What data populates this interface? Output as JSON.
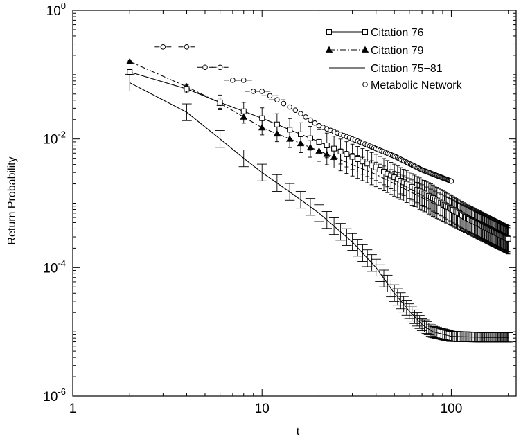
{
  "chart_data": {
    "type": "line",
    "xscale": "log",
    "yscale": "log",
    "xlabel": "t",
    "ylabel": "Return Probability",
    "xlim": [
      1,
      220
    ],
    "ylim": [
      1e-06,
      1
    ],
    "xticks": [
      {
        "value": 1,
        "label": "1"
      },
      {
        "value": 10,
        "label": "10"
      },
      {
        "value": 100,
        "label": "100"
      }
    ],
    "yticks": [
      {
        "value": 1,
        "base": "10",
        "exp": "0"
      },
      {
        "value": 0.01,
        "base": "10",
        "exp": "-2"
      },
      {
        "value": 0.0001,
        "base": "10",
        "exp": "-4"
      },
      {
        "value": 1e-06,
        "base": "10",
        "exp": "-6"
      }
    ],
    "grid": false,
    "legend_position": "top-right",
    "series": [
      {
        "name": "Citation 76",
        "marker": "open-square",
        "line": "solid",
        "color": "#000000",
        "anchors": [
          [
            2,
            0.11
          ],
          [
            4,
            0.06
          ],
          [
            6,
            0.037
          ],
          [
            10,
            0.021
          ],
          [
            20,
            0.009
          ],
          [
            40,
            0.0036
          ],
          [
            80,
            0.0012
          ],
          [
            120,
            0.0006
          ],
          [
            200,
            0.00028
          ]
        ],
        "err_factor": [
          0.1,
          0.15,
          0.3,
          0.45,
          0.55,
          0.6,
          0.6,
          0.6,
          0.6
        ]
      },
      {
        "name": "Citation 79",
        "marker": "filled-triangle",
        "line": "dashdot",
        "color": "#000000",
        "anchors": [
          [
            2,
            0.16
          ],
          [
            4,
            0.065
          ],
          [
            6,
            0.036
          ],
          [
            10,
            0.015
          ],
          [
            20,
            0.0065
          ],
          [
            40,
            0.0028
          ],
          [
            80,
            0.001
          ],
          [
            120,
            0.00055
          ],
          [
            200,
            0.00026
          ]
        ],
        "err_factor": [
          0.05,
          0.1,
          0.2,
          0.3,
          0.45,
          0.55,
          0.6,
          0.6,
          0.6
        ]
      },
      {
        "name": "Citation 75−81",
        "marker": "none",
        "line": "solid",
        "color": "#000000",
        "anchors": [
          [
            2,
            0.075
          ],
          [
            4,
            0.026
          ],
          [
            6,
            0.01
          ],
          [
            8,
            0.005
          ],
          [
            10,
            0.003
          ],
          [
            15,
            0.0013
          ],
          [
            20,
            0.0007
          ],
          [
            30,
            0.00025
          ],
          [
            40,
            0.0001
          ],
          [
            50,
            4e-05
          ],
          [
            60,
            2.1e-05
          ],
          [
            70,
            1.3e-05
          ],
          [
            80,
            1e-05
          ],
          [
            100,
            8.5e-06
          ],
          [
            150,
            8.2e-06
          ],
          [
            200,
            8.2e-06
          ]
        ],
        "err_factor": [
          0.35,
          0.35,
          0.35,
          0.35,
          0.35,
          0.35,
          0.35,
          0.35,
          0.35,
          0.35,
          0.3,
          0.25,
          0.22,
          0.2,
          0.18,
          0.18
        ]
      },
      {
        "name": "Metabolic Network",
        "marker": "open-circle",
        "line": "none",
        "color": "#000000",
        "anchors": [
          [
            3,
            0.27
          ],
          [
            4,
            0.27
          ],
          [
            5,
            0.13
          ],
          [
            6,
            0.13
          ],
          [
            7,
            0.082
          ],
          [
            8,
            0.082
          ],
          [
            9,
            0.055
          ],
          [
            10,
            0.055
          ],
          [
            15,
            0.028
          ],
          [
            20,
            0.016
          ],
          [
            30,
            0.01
          ],
          [
            50,
            0.0054
          ],
          [
            70,
            0.0033
          ],
          [
            100,
            0.0022
          ]
        ]
      }
    ]
  }
}
